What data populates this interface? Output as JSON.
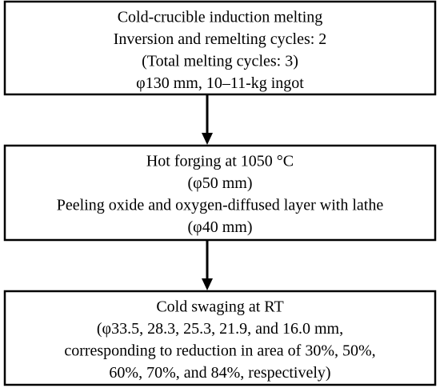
{
  "nodes": [
    {
      "lines": [
        "Cold-crucible induction melting",
        "Inversion and remelting cycles: 2",
        "(Total melting cycles: 3)",
        "φ130 mm, 10–11-kg ingot"
      ]
    },
    {
      "lines": [
        "Hot forging at 1050 °C",
        "(φ50 mm)",
        "Peeling oxide and oxygen-diffused layer with lathe",
        "(φ40 mm)"
      ]
    },
    {
      "lines": [
        "Cold swaging at RT",
        "(φ33.5, 28.3, 25.3, 21.9, and 16.0 mm,",
        "corresponding to reduction in area of 30%, 50%,",
        "60%, 70%, and 84%, respectively)"
      ]
    }
  ]
}
